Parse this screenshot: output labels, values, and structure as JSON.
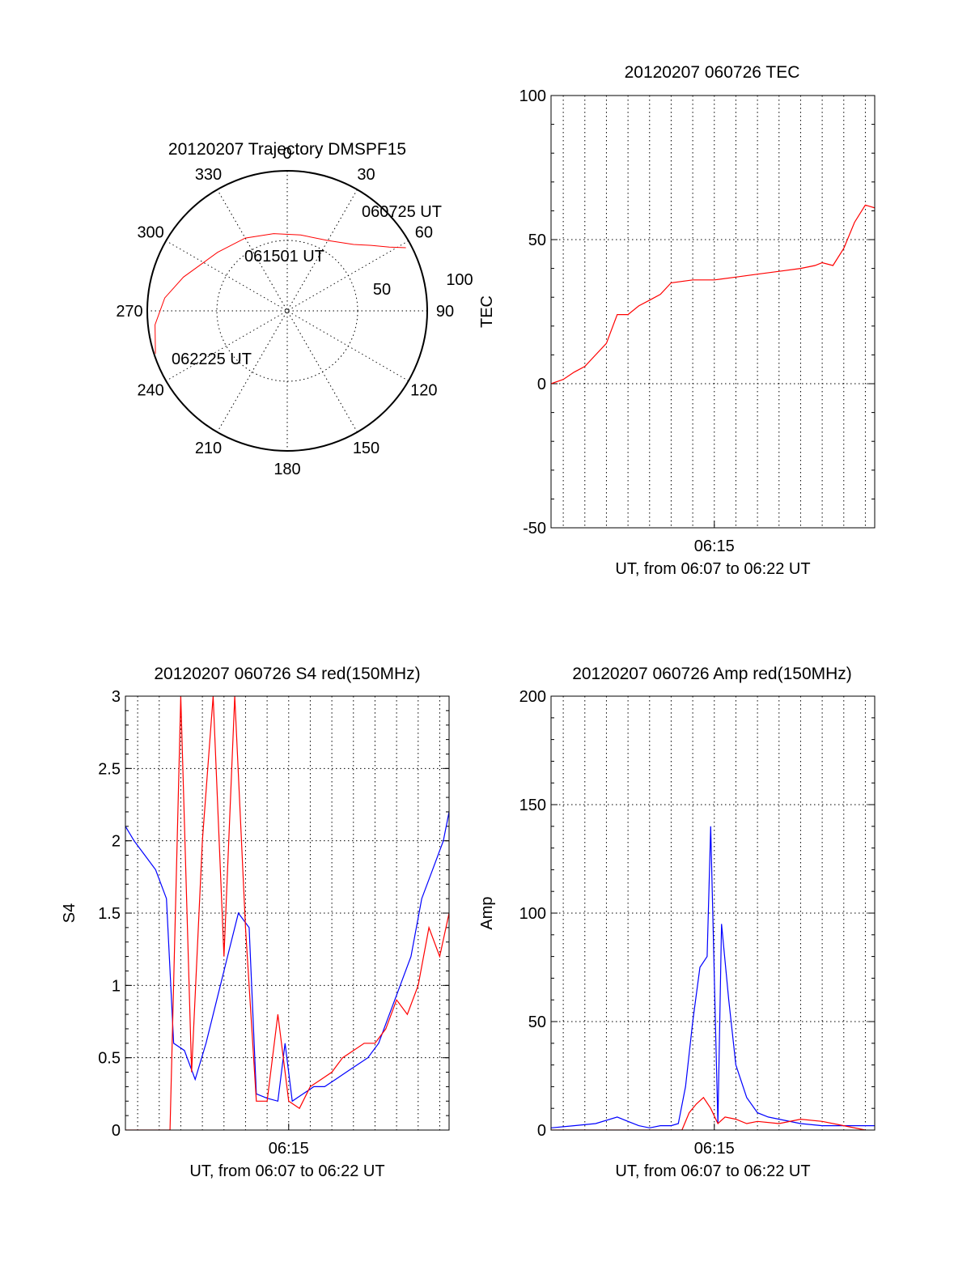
{
  "chart_data": [
    {
      "type": "scatter",
      "panel": "trajectory",
      "title": "20120207 Trajectory DMSPF15",
      "polar": true,
      "radial_ticks": [
        "50",
        "100"
      ],
      "angle_ticks": [
        "0",
        "30",
        "60",
        "90",
        "120",
        "150",
        "180",
        "210",
        "240",
        "270",
        "300",
        "330"
      ],
      "series": [
        {
          "color": "#ff0000",
          "points": [
            {
              "azimuth": 62,
              "zenith": 96
            },
            {
              "azimuth": 58,
              "zenith": 86
            },
            {
              "azimuth": 52,
              "zenith": 76
            },
            {
              "azimuth": 45,
              "zenith": 67
            },
            {
              "azimuth": 30,
              "zenith": 58
            },
            {
              "azimuth": 10,
              "zenith": 55
            },
            {
              "azimuth": -10,
              "zenith": 56
            },
            {
              "azimuth": -30,
              "zenith": 60
            },
            {
              "azimuth": -50,
              "zenith": 65
            },
            {
              "azimuth": -60,
              "zenith": 69
            },
            {
              "azimuth": -72,
              "zenith": 78
            },
            {
              "azimuth": -84,
              "zenith": 88
            },
            {
              "azimuth": -96,
              "zenith": 95
            },
            {
              "azimuth": -108,
              "zenith": 99
            }
          ]
        }
      ],
      "annotations": [
        "060725 UT",
        "061501 UT",
        "062225 UT"
      ]
    },
    {
      "type": "line",
      "panel": "tec",
      "title": "20120207 060726 TEC",
      "ylabel": "TEC",
      "xlabel": "UT, from 06:07 to 06:22 UT",
      "xlim": [
        "06:07:26",
        "06:22:26"
      ],
      "ylim": [
        -50,
        100
      ],
      "yticks": [
        "-50",
        "0",
        "50",
        "100"
      ],
      "xticks": [
        "06:15"
      ],
      "grid": true,
      "series": [
        {
          "color": "#ff0000",
          "x": [
            "06:07:26",
            "06:08:00",
            "06:08:30",
            "06:09:00",
            "06:09:30",
            "06:10:00",
            "06:10:30",
            "06:11:00",
            "06:11:30",
            "06:12:00",
            "06:12:30",
            "06:13:00",
            "06:14:00",
            "06:15:00",
            "06:16:00",
            "06:17:00",
            "06:18:00",
            "06:19:00",
            "06:19:40",
            "06:20:00",
            "06:20:30",
            "06:21:00",
            "06:21:30",
            "06:22:00",
            "06:22:26"
          ],
          "y": [
            0,
            1.5,
            4,
            6,
            10,
            14,
            24,
            24,
            27,
            29,
            31,
            35,
            36,
            36,
            37,
            38,
            39,
            40,
            41,
            42,
            41,
            47,
            56,
            62,
            61
          ]
        }
      ]
    },
    {
      "type": "line",
      "panel": "s4",
      "title": "20120207 060726 S4 red(150MHz)",
      "ylabel": "S4",
      "xlabel": "UT, from 06:07 to 06:22 UT",
      "xlim": [
        "06:07:26",
        "06:22:26"
      ],
      "ylim": [
        0,
        3
      ],
      "yticks": [
        "0",
        "0.5",
        "1",
        "1.5",
        "2",
        "2.5",
        "3"
      ],
      "xticks": [
        "06:15"
      ],
      "grid": true,
      "series": [
        {
          "color": "#0000ff",
          "x": [
            "06:07:26",
            "06:07:50",
            "06:08:20",
            "06:08:50",
            "06:09:20",
            "06:09:40",
            "06:10:10",
            "06:10:40",
            "06:11:10",
            "06:11:40",
            "06:12:10",
            "06:12:40",
            "06:13:10",
            "06:13:30",
            "06:14:00",
            "06:14:30",
            "06:14:50",
            "06:15:10",
            "06:15:40",
            "06:16:10",
            "06:16:40",
            "06:17:10",
            "06:17:40",
            "06:18:10",
            "06:18:40",
            "06:19:10",
            "06:19:40",
            "06:20:10",
            "06:20:40",
            "06:21:10",
            "06:21:40",
            "06:22:10",
            "06:22:26"
          ],
          "y": [
            2.1,
            2.0,
            1.9,
            1.8,
            1.6,
            0.6,
            0.55,
            0.35,
            0.6,
            0.9,
            1.2,
            1.5,
            1.4,
            0.25,
            0.22,
            0.2,
            0.6,
            0.2,
            0.25,
            0.3,
            0.3,
            0.35,
            0.4,
            0.45,
            0.5,
            0.6,
            0.8,
            1.0,
            1.2,
            1.6,
            1.8,
            2.0,
            2.2
          ]
        },
        {
          "color": "#ff0000",
          "x": [
            "06:07:26",
            "06:09:30",
            "06:10:00",
            "06:10:30",
            "06:11:00",
            "06:11:30",
            "06:12:00",
            "06:12:30",
            "06:13:00",
            "06:13:30",
            "06:14:00",
            "06:14:30",
            "06:15:00",
            "06:15:30",
            "06:16:00",
            "06:16:30",
            "06:17:00",
            "06:17:30",
            "06:18:00",
            "06:18:30",
            "06:19:00",
            "06:19:30",
            "06:20:00",
            "06:20:30",
            "06:21:00",
            "06:21:30",
            "06:22:00",
            "06:22:26"
          ],
          "y": [
            0,
            0,
            3,
            0.4,
            2.0,
            3,
            1.2,
            3,
            1.4,
            0.2,
            0.2,
            0.8,
            0.2,
            0.15,
            0.3,
            0.35,
            0.4,
            0.5,
            0.55,
            0.6,
            0.6,
            0.7,
            0.9,
            0.8,
            1.0,
            1.4,
            1.2,
            1.5
          ]
        }
      ]
    },
    {
      "type": "line",
      "panel": "amp",
      "title": "20120207 060726 Amp red(150MHz)",
      "ylabel": "Amp",
      "xlabel": "UT, from 06:07 to 06:22 UT",
      "xlim": [
        "06:07:26",
        "06:22:26"
      ],
      "ylim": [
        0,
        200
      ],
      "yticks": [
        "0",
        "50",
        "100",
        "150",
        "200"
      ],
      "xticks": [
        "06:15"
      ],
      "grid": true,
      "series": [
        {
          "color": "#0000ff",
          "x": [
            "06:07:26",
            "06:08:30",
            "06:09:30",
            "06:10:30",
            "06:11:00",
            "06:11:30",
            "06:12:00",
            "06:12:30",
            "06:13:00",
            "06:13:20",
            "06:13:40",
            "06:14:00",
            "06:14:20",
            "06:14:40",
            "06:14:50",
            "06:15:00",
            "06:15:10",
            "06:15:20",
            "06:15:40",
            "06:16:00",
            "06:16:30",
            "06:17:00",
            "06:17:30",
            "06:18:00",
            "06:19:00",
            "06:20:00",
            "06:21:00",
            "06:22:26"
          ],
          "y": [
            1,
            2,
            3,
            6,
            4,
            2,
            1,
            2,
            2,
            3,
            20,
            50,
            75,
            80,
            140,
            70,
            3,
            95,
            60,
            30,
            15,
            8,
            6,
            5,
            3,
            2,
            2,
            2
          ]
        },
        {
          "color": "#ff0000",
          "x": [
            "06:07:26",
            "06:13:30",
            "06:13:50",
            "06:14:10",
            "06:14:30",
            "06:14:50",
            "06:15:10",
            "06:15:30",
            "06:16:00",
            "06:16:30",
            "06:17:00",
            "06:18:00",
            "06:19:00",
            "06:20:00",
            "06:21:00",
            "06:22:00"
          ],
          "y": [
            0,
            0,
            8,
            12,
            15,
            10,
            3,
            6,
            5,
            3,
            4,
            3,
            5,
            4,
            2,
            0
          ]
        }
      ]
    }
  ]
}
